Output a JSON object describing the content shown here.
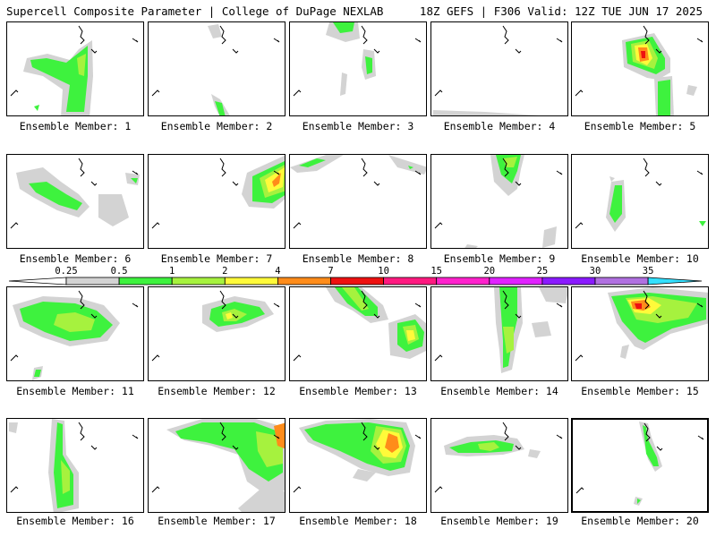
{
  "header": {
    "left_title": "Supercell Composite Parameter | College of DuPage NEXLAB",
    "right_title": "18Z GEFS | F306 Valid: 12Z TUE JUN 17 2025"
  },
  "panels": [
    {
      "label": "Ensemble Member: 1"
    },
    {
      "label": "Ensemble Member: 2"
    },
    {
      "label": "Ensemble Member: 3"
    },
    {
      "label": "Ensemble Member: 4"
    },
    {
      "label": "Ensemble Member: 5"
    },
    {
      "label": "Ensemble Member: 6"
    },
    {
      "label": "Ensemble Member: 7"
    },
    {
      "label": "Ensemble Member: 8"
    },
    {
      "label": "Ensemble Member: 9"
    },
    {
      "label": "Ensemble Member: 10"
    },
    {
      "label": "Ensemble Member: 11"
    },
    {
      "label": "Ensemble Member: 12"
    },
    {
      "label": "Ensemble Member: 13"
    },
    {
      "label": "Ensemble Member: 14"
    },
    {
      "label": "Ensemble Member: 15"
    },
    {
      "label": "Ensemble Member: 16"
    },
    {
      "label": "Ensemble Member: 17"
    },
    {
      "label": "Ensemble Member: 18"
    },
    {
      "label": "Ensemble Member: 19"
    },
    {
      "label": "Ensemble Member: 20"
    }
  ],
  "colorbar": {
    "levels": [
      "0.25",
      "0.5",
      "1",
      "2",
      "4",
      "7",
      "10",
      "15",
      "20",
      "25",
      "30",
      "35"
    ],
    "colors": [
      "#d3d3d3",
      "#3ef23e",
      "#a6f23e",
      "#fffa3a",
      "#ff8c1a",
      "#ee1111",
      "#ff1a80",
      "#ff22cc",
      "#e022ff",
      "#8a1aff",
      "#b070e0",
      "#33e0ff"
    ]
  }
}
